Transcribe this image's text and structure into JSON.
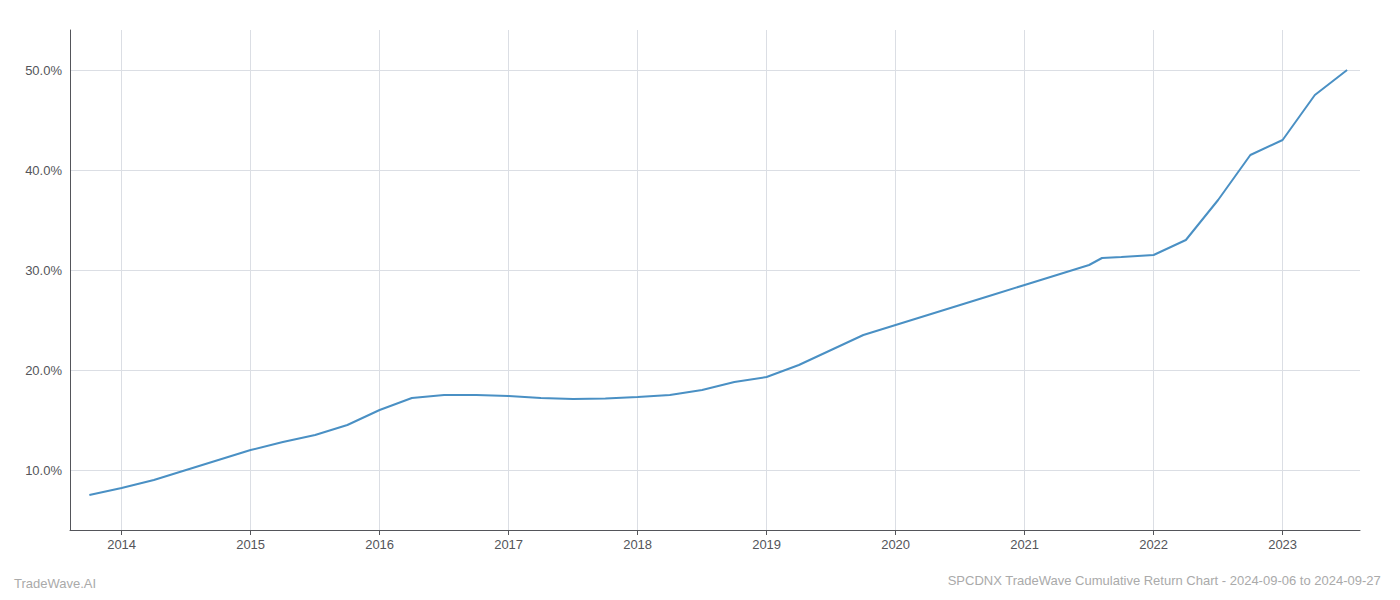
{
  "chart_data": {
    "type": "line",
    "title": "SPCDNX TradeWave Cumulative Return Chart - 2024-09-06 to 2024-09-27",
    "annotations": [
      "TradeWave.AI"
    ],
    "color": "#4a90c4",
    "grid": true,
    "x": [
      2013.75,
      2014.0,
      2014.25,
      2014.5,
      2014.75,
      2015.0,
      2015.25,
      2015.5,
      2015.75,
      2016.0,
      2016.25,
      2016.5,
      2016.75,
      2017.0,
      2017.25,
      2017.5,
      2017.75,
      2018.0,
      2018.25,
      2018.5,
      2018.75,
      2019.0,
      2019.25,
      2019.5,
      2019.75,
      2020.0,
      2020.25,
      2020.5,
      2020.75,
      2021.0,
      2021.25,
      2021.5,
      2021.6,
      2021.75,
      2022.0,
      2022.25,
      2022.5,
      2022.75,
      2023.0,
      2023.25,
      2023.5
    ],
    "values": [
      7.5,
      8.2,
      9.0,
      10.0,
      11.0,
      12.0,
      12.8,
      13.5,
      14.5,
      16.0,
      17.2,
      17.5,
      17.5,
      17.4,
      17.2,
      17.1,
      17.15,
      17.3,
      17.5,
      18.0,
      18.8,
      19.3,
      20.5,
      22.0,
      23.5,
      24.5,
      25.5,
      26.5,
      27.5,
      28.5,
      29.5,
      30.5,
      31.2,
      31.3,
      31.5,
      33.0,
      37.0,
      41.5,
      43.0,
      47.5,
      50.0
    ],
    "xlim": [
      2013.6,
      2023.6
    ],
    "xticks": [
      2014,
      2015,
      2016,
      2017,
      2018,
      2019,
      2020,
      2021,
      2022,
      2023
    ],
    "ylim": [
      4,
      54
    ],
    "yticks": [
      {
        "value": 10,
        "label": "10.0%"
      },
      {
        "value": 20,
        "label": "20.0%"
      },
      {
        "value": 30,
        "label": "30.0%"
      },
      {
        "value": 40,
        "label": "40.0%"
      },
      {
        "value": 50,
        "label": "50.0%"
      }
    ]
  }
}
